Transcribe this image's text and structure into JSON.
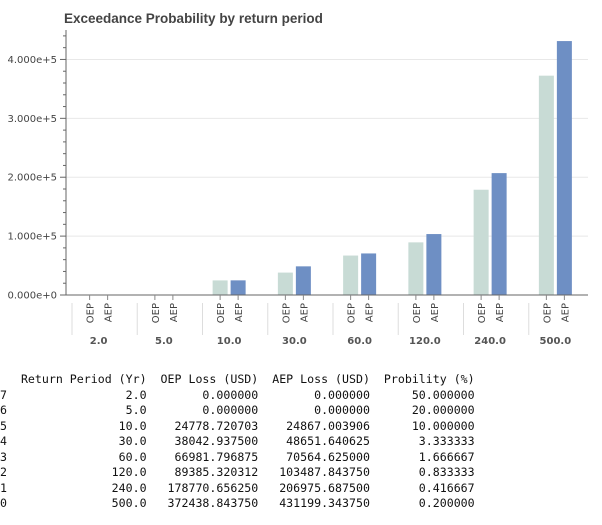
{
  "chart_data": {
    "type": "bar",
    "title": "Exceedance Probability by return period",
    "categories": [
      "2.0",
      "5.0",
      "10.0",
      "30.0",
      "60.0",
      "120.0",
      "240.0",
      "500.0"
    ],
    "series": [
      {
        "name": "OEP",
        "values": [
          0,
          0,
          24778.720703,
          38042.9375,
          66981.796875,
          89385.320312,
          178770.65625,
          372438.84375
        ]
      },
      {
        "name": "AEP",
        "values": [
          0,
          0,
          24867.003906,
          48651.640625,
          70564.625,
          103487.84375,
          206975.6875,
          431199.34375
        ]
      }
    ],
    "ylim": [
      0,
      450000
    ],
    "yticks": [
      0,
      100000,
      200000,
      300000,
      400000
    ],
    "ytick_labels": [
      "0.000e+0",
      "1.000e+5",
      "2.000e+5",
      "3.000e+5",
      "4.000e+5"
    ],
    "grid": true,
    "colors": {
      "OEP": "#c8dbd5",
      "AEP": "#6e8fc4"
    }
  },
  "table": {
    "header": "   Return Period (Yr)  OEP Loss (USD)  AEP Loss (USD)  Probility (%)",
    "rows": [
      "7                 2.0        0.000000        0.000000      50.000000",
      "6                 5.0        0.000000        0.000000      20.000000",
      "5                10.0    24778.720703    24867.003906      10.000000",
      "4                30.0    38042.937500    48651.640625       3.333333",
      "3                60.0    66981.796875    70564.625000       1.666667",
      "2               120.0    89385.320312   103487.843750       0.833333",
      "1               240.0   178770.656250   206975.687500       0.416667",
      "0               500.0   372438.843750   431199.343750       0.200000"
    ]
  }
}
